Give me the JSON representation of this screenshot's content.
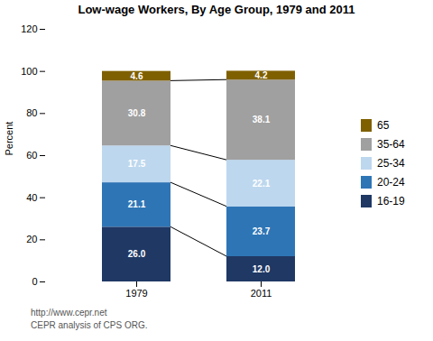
{
  "chart_data": {
    "type": "bar",
    "title": "Low-wage Workers, By Age Group, 1979 and 2011",
    "categories": [
      "1979",
      "2011"
    ],
    "series": [
      {
        "name": "16-19",
        "color": "#1F3864",
        "values": [
          26.0,
          12.0
        ],
        "value_labels": [
          "26.0",
          "12.0"
        ]
      },
      {
        "name": "20-24",
        "color": "#2E75B6",
        "values": [
          21.1,
          23.7
        ],
        "value_labels": [
          "21.1",
          "23.7"
        ]
      },
      {
        "name": "25-34",
        "color": "#BDD7EE",
        "values": [
          17.5,
          22.1
        ],
        "value_labels": [
          "17.5",
          "22.1"
        ]
      },
      {
        "name": "35-64",
        "color": "#A0A0A0",
        "values": [
          30.8,
          38.1
        ],
        "value_labels": [
          "30.8",
          "38.1"
        ]
      },
      {
        "name": "65",
        "color": "#7F6000",
        "values": [
          4.6,
          4.2
        ],
        "value_labels": [
          "4.6",
          "4.2"
        ]
      }
    ],
    "ylabel": "Percent",
    "ylim": [
      0,
      120
    ],
    "yticks": [
      0,
      20,
      40,
      60,
      80,
      100,
      120
    ],
    "stacked": true,
    "data_labels": true,
    "grid": false,
    "legend": "right",
    "annotations": [
      "http://www.cepr.net",
      "CEPR analysis of CPS ORG."
    ]
  }
}
